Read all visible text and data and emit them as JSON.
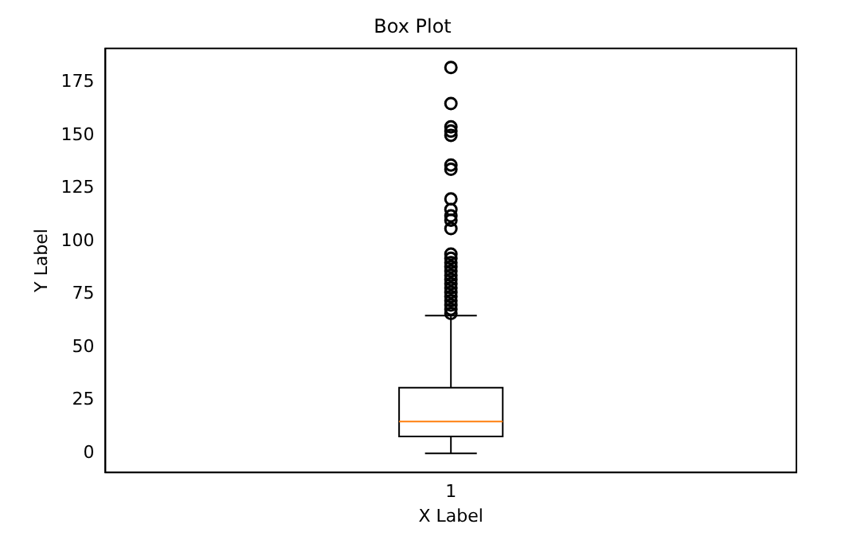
{
  "chart_data": {
    "type": "box",
    "title": "Box Plot",
    "xlabel": "X Label",
    "ylabel": "Y Label",
    "categories": [
      "1"
    ],
    "boxes": [
      {
        "low": 0,
        "q1": 8,
        "median": 15,
        "q3": 31,
        "high": 65,
        "outliers": [
          182,
          165,
          154,
          152,
          150,
          136,
          134,
          120,
          115,
          112,
          110,
          106,
          94,
          92,
          90,
          88,
          86,
          84,
          82,
          80,
          78,
          76,
          74,
          72,
          70,
          68,
          66
        ]
      }
    ],
    "ylim": [
      -9,
      191
    ],
    "yticks": [
      0,
      25,
      50,
      75,
      100,
      125,
      150,
      175
    ],
    "grid": false
  }
}
